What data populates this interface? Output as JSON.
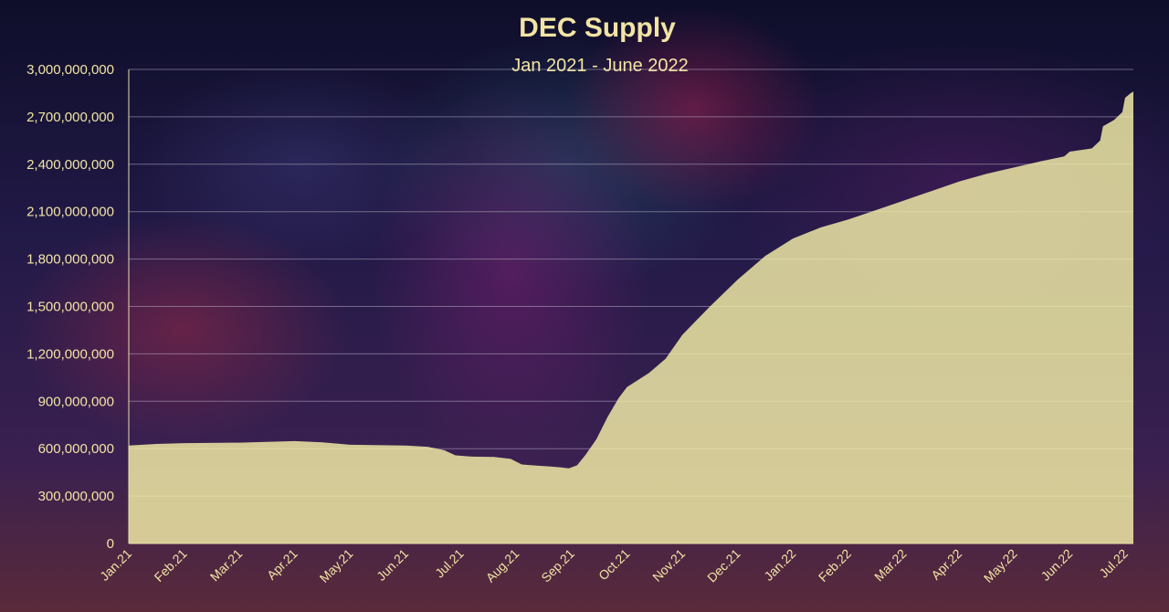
{
  "colors": {
    "area_fill": "#f5f0a8",
    "text": "#f2e4a4",
    "gridline": "#cfc9e0",
    "axis_line": "#e8e0b0"
  },
  "chart_data": {
    "type": "area",
    "title": "DEC Supply",
    "subtitle": "Jan 2021 - June 2022",
    "xlabel": "",
    "ylabel": "",
    "ylim": [
      0,
      3000000000
    ],
    "y_ticks": [
      "0",
      "300,000,000",
      "600,000,000",
      "900,000,000",
      "1,200,000,000",
      "1,500,000,000",
      "1,800,000,000",
      "2,100,000,000",
      "2,400,000,000",
      "2,700,000,000",
      "3,000,000,000"
    ],
    "categories": [
      "Jan.21",
      "Feb.21",
      "Mar.21",
      "Apr.21",
      "May.21",
      "Jun.21",
      "Jul.21",
      "Aug.21",
      "Sep.21",
      "Oct.21",
      "Nov.21",
      "Dec.21",
      "Jan.22",
      "Feb.22",
      "Mar.22",
      "Apr.22",
      "May.22",
      "Jun.22",
      "Jul.22"
    ],
    "grid": true,
    "legend": "none",
    "series": [
      {
        "points": [
          [
            0.0,
            620000000
          ],
          [
            0.5,
            630000000
          ],
          [
            1.0,
            635000000
          ],
          [
            2.0,
            638000000
          ],
          [
            3.0,
            648000000
          ],
          [
            3.5,
            640000000
          ],
          [
            4.0,
            625000000
          ],
          [
            5.0,
            620000000
          ],
          [
            5.4,
            612000000
          ],
          [
            5.7,
            590000000
          ],
          [
            5.9,
            558000000
          ],
          [
            6.2,
            550000000
          ],
          [
            6.6,
            548000000
          ],
          [
            6.9,
            535000000
          ],
          [
            7.1,
            500000000
          ],
          [
            7.4,
            492000000
          ],
          [
            7.6,
            488000000
          ],
          [
            7.8,
            482000000
          ],
          [
            7.95,
            475000000
          ],
          [
            8.1,
            495000000
          ],
          [
            8.25,
            560000000
          ],
          [
            8.45,
            660000000
          ],
          [
            8.65,
            800000000
          ],
          [
            8.85,
            920000000
          ],
          [
            9.0,
            990000000
          ],
          [
            9.4,
            1080000000
          ],
          [
            9.7,
            1170000000
          ],
          [
            10.0,
            1320000000
          ],
          [
            10.5,
            1500000000
          ],
          [
            11.0,
            1670000000
          ],
          [
            11.5,
            1820000000
          ],
          [
            12.0,
            1930000000
          ],
          [
            12.5,
            2000000000
          ],
          [
            13.0,
            2050000000
          ],
          [
            13.5,
            2110000000
          ],
          [
            14.0,
            2170000000
          ],
          [
            14.5,
            2230000000
          ],
          [
            15.0,
            2290000000
          ],
          [
            15.5,
            2340000000
          ],
          [
            16.0,
            2380000000
          ],
          [
            16.5,
            2420000000
          ],
          [
            16.9,
            2450000000
          ],
          [
            17.0,
            2480000000
          ],
          [
            17.4,
            2500000000
          ],
          [
            17.55,
            2550000000
          ],
          [
            17.6,
            2640000000
          ],
          [
            17.8,
            2680000000
          ],
          [
            17.95,
            2730000000
          ],
          [
            18.0,
            2820000000
          ],
          [
            18.1,
            2850000000
          ],
          [
            18.15,
            2860000000
          ]
        ]
      }
    ]
  }
}
